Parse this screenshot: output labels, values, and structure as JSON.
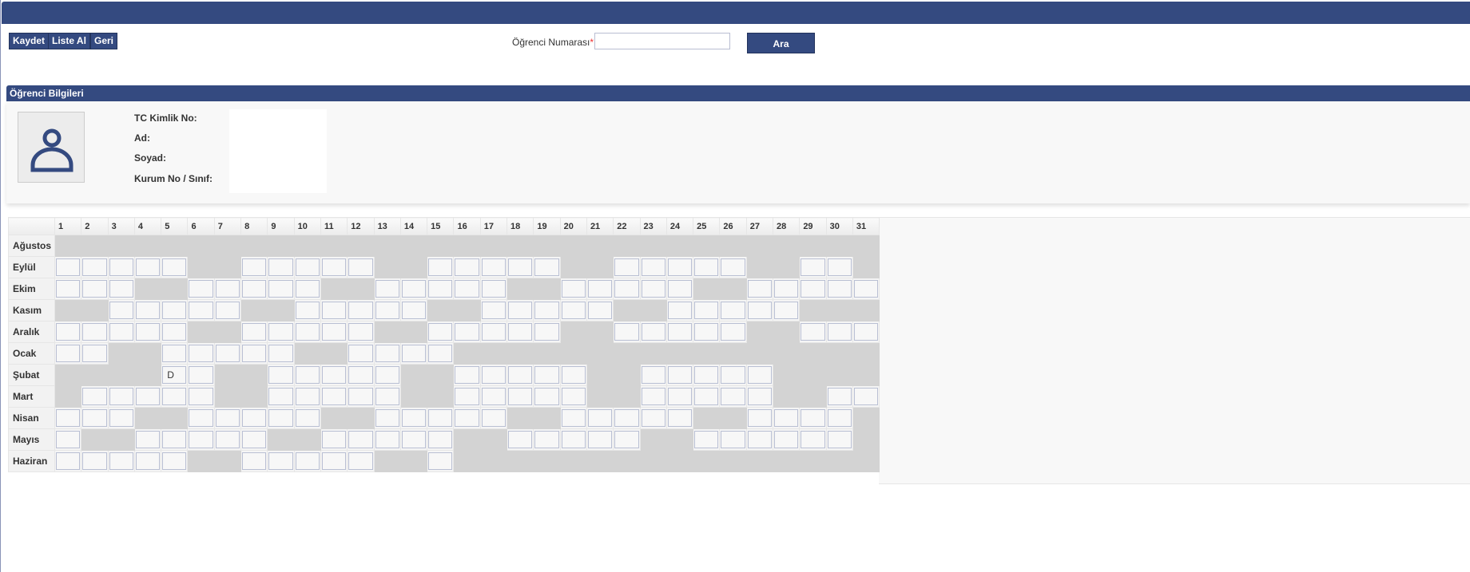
{
  "toolbar": {
    "save": "Kaydet",
    "list": "Liste Al",
    "back": "Geri"
  },
  "search": {
    "label": "Öğrenci Numarası",
    "required_mark": "*",
    "value": "",
    "search_button": "Ara"
  },
  "student_info": {
    "title": "Öğrenci Bilgileri",
    "avatar_icon": "user-icon",
    "fields": [
      {
        "label": "TC Kimlik No:",
        "value": ""
      },
      {
        "label": "Ad:",
        "value": ""
      },
      {
        "label": "Soyad:",
        "value": ""
      },
      {
        "label": "Kurum No / Sınıf:",
        "value": ""
      }
    ]
  },
  "colors": {
    "primary": "#344a80",
    "disabled_day": "#d3d3d3"
  },
  "attendance": {
    "days": [
      "1",
      "2",
      "3",
      "4",
      "5",
      "6",
      "7",
      "8",
      "9",
      "10",
      "11",
      "12",
      "13",
      "14",
      "15",
      "16",
      "17",
      "18",
      "19",
      "20",
      "21",
      "22",
      "23",
      "24",
      "25",
      "26",
      "27",
      "28",
      "29",
      "30",
      "31"
    ],
    "months": [
      {
        "name": "Ağustos",
        "pattern": "0000000000000000000000000000000",
        "values": {}
      },
      {
        "name": "Eylül",
        "pattern": "1111100111110011111001111100110",
        "values": {}
      },
      {
        "name": "Ekim",
        "pattern": "1110011111001111100111110011111",
        "values": {}
      },
      {
        "name": "Kasım",
        "pattern": "0011111001111100111110011111000",
        "values": {}
      },
      {
        "name": "Aralık",
        "pattern": "1111100111110011111001111100111",
        "values": {}
      },
      {
        "name": "Ocak",
        "pattern": "1100111110011110000000000000000",
        "values": {}
      },
      {
        "name": "Şubat",
        "pattern": "0000110011111001111100111110000",
        "values": {
          "5": "D"
        }
      },
      {
        "name": "Mart",
        "pattern": "0111110011111001111100111110011",
        "values": {}
      },
      {
        "name": "Nisan",
        "pattern": "1110011111001111100111110011110",
        "values": {}
      },
      {
        "name": "Mayıs",
        "pattern": "1001111100111110011111001111110",
        "values": {}
      },
      {
        "name": "Haziran",
        "pattern": "1111100111110010000000000000000",
        "values": {}
      }
    ]
  }
}
